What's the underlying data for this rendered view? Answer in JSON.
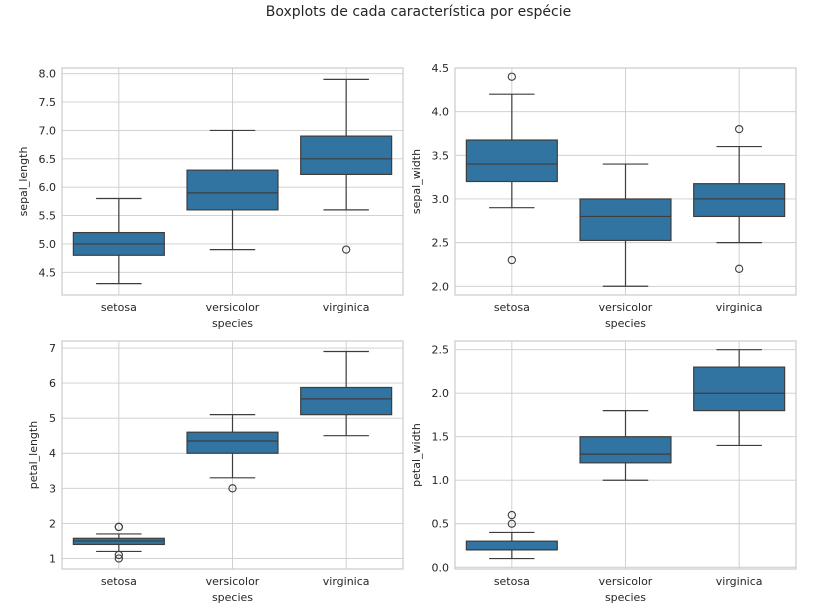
{
  "figure": {
    "title": "Boxplots de cada característica por espécie"
  },
  "colors": {
    "box_fill": "#3274a1",
    "line": "#3d3d3d",
    "grid": "#cccccc",
    "frame": "#cccccc",
    "background": "#ffffff"
  },
  "chart_data": [
    {
      "type": "boxplot",
      "xlabel": "species",
      "ylabel": "sepal_length",
      "categories": [
        "setosa",
        "versicolor",
        "virginica"
      ],
      "ylim": [
        4.1,
        8.1
      ],
      "yticks": [
        4.5,
        5.0,
        5.5,
        6.0,
        6.5,
        7.0,
        7.5,
        8.0
      ],
      "ytick_labels": [
        "4.5",
        "5.0",
        "5.5",
        "6.0",
        "6.5",
        "7.0",
        "7.5",
        "8.0"
      ],
      "grid": true,
      "boxes": [
        {
          "whisker_low": 4.3,
          "q1": 4.8,
          "median": 5.0,
          "q3": 5.2,
          "whisker_high": 5.8,
          "outliers": []
        },
        {
          "whisker_low": 4.9,
          "q1": 5.6,
          "median": 5.9,
          "q3": 6.3,
          "whisker_high": 7.0,
          "outliers": []
        },
        {
          "whisker_low": 5.6,
          "q1": 6.225,
          "median": 6.5,
          "q3": 6.9,
          "whisker_high": 7.9,
          "outliers": [
            4.9
          ]
        }
      ]
    },
    {
      "type": "boxplot",
      "xlabel": "species",
      "ylabel": "sepal_width",
      "categories": [
        "setosa",
        "versicolor",
        "virginica"
      ],
      "ylim": [
        1.9,
        4.5
      ],
      "yticks": [
        2.0,
        2.5,
        3.0,
        3.5,
        4.0,
        4.5
      ],
      "ytick_labels": [
        "2.0",
        "2.5",
        "3.0",
        "3.5",
        "4.0",
        "4.5"
      ],
      "grid": true,
      "boxes": [
        {
          "whisker_low": 2.9,
          "q1": 3.2,
          "median": 3.4,
          "q3": 3.675,
          "whisker_high": 4.2,
          "outliers": [
            2.3,
            4.4
          ]
        },
        {
          "whisker_low": 2.0,
          "q1": 2.525,
          "median": 2.8,
          "q3": 3.0,
          "whisker_high": 3.4,
          "outliers": []
        },
        {
          "whisker_low": 2.5,
          "q1": 2.8,
          "median": 3.0,
          "q3": 3.175,
          "whisker_high": 3.6,
          "outliers": [
            2.2,
            3.8
          ]
        }
      ]
    },
    {
      "type": "boxplot",
      "xlabel": "species",
      "ylabel": "petal_length",
      "categories": [
        "setosa",
        "versicolor",
        "virginica"
      ],
      "ylim": [
        0.7,
        7.2
      ],
      "yticks": [
        1,
        2,
        3,
        4,
        5,
        6,
        7
      ],
      "ytick_labels": [
        "1",
        "2",
        "3",
        "4",
        "5",
        "6",
        "7"
      ],
      "grid": true,
      "boxes": [
        {
          "whisker_low": 1.2,
          "q1": 1.4,
          "median": 1.5,
          "q3": 1.575,
          "whisker_high": 1.7,
          "outliers": [
            1.0,
            1.1,
            1.9,
            1.9
          ]
        },
        {
          "whisker_low": 3.3,
          "q1": 4.0,
          "median": 4.35,
          "q3": 4.6,
          "whisker_high": 5.1,
          "outliers": [
            3.0
          ]
        },
        {
          "whisker_low": 4.5,
          "q1": 5.1,
          "median": 5.55,
          "q3": 5.875,
          "whisker_high": 6.9,
          "outliers": []
        }
      ]
    },
    {
      "type": "boxplot",
      "xlabel": "species",
      "ylabel": "petal_width",
      "categories": [
        "setosa",
        "versicolor",
        "virginica"
      ],
      "ylim": [
        -0.02,
        2.6
      ],
      "yticks": [
        0.0,
        0.5,
        1.0,
        1.5,
        2.0,
        2.5
      ],
      "ytick_labels": [
        "0.0",
        "0.5",
        "1.0",
        "1.5",
        "2.0",
        "2.5"
      ],
      "grid": true,
      "boxes": [
        {
          "whisker_low": 0.1,
          "q1": 0.2,
          "median": 0.2,
          "q3": 0.3,
          "whisker_high": 0.4,
          "outliers": [
            0.5,
            0.6
          ]
        },
        {
          "whisker_low": 1.0,
          "q1": 1.2,
          "median": 1.3,
          "q3": 1.5,
          "whisker_high": 1.8,
          "outliers": []
        },
        {
          "whisker_low": 1.4,
          "q1": 1.8,
          "median": 2.0,
          "q3": 2.3,
          "whisker_high": 2.5,
          "outliers": []
        }
      ]
    }
  ]
}
